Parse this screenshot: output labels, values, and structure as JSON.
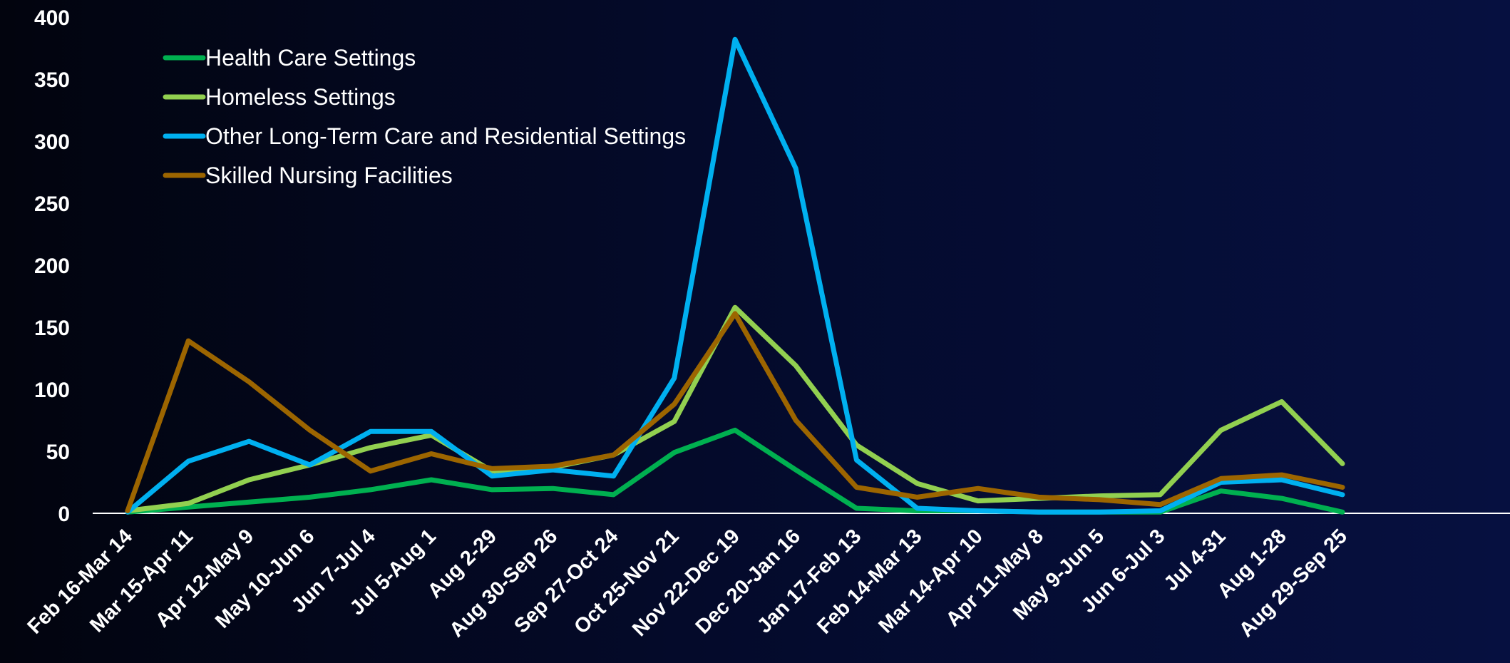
{
  "chart_data": {
    "type": "line",
    "title": "",
    "xlabel": "",
    "ylabel": "",
    "ylim": [
      0,
      400
    ],
    "yticks": [
      "0",
      "50",
      "100",
      "150",
      "200",
      "250",
      "300",
      "350",
      "400"
    ],
    "grid": false,
    "legend_position": "top-left",
    "categories": [
      "Feb 16-Mar 14",
      "Mar 15-Apr 11",
      "Apr 12-May 9",
      "May 10-Jun 6",
      "Jun 7-Jul 4",
      "Jul 5-Aug 1",
      "Aug 2-29",
      "Aug 30-Sep 26",
      "Sep 27-Oct 24",
      "Oct 25-Nov 21",
      "Nov 22-Dec 19",
      "Dec 20-Jan 16",
      "Jan 17-Feb 13",
      "Feb 14-Mar 13",
      "Mar 14-Apr 10",
      "Apr 11-May 8",
      "May 9-Jun 5",
      "Jun 6-Jul 3",
      "Jul 4-31",
      "Aug 1-28",
      "Aug 29-Sep 25"
    ],
    "series": [
      {
        "name": "Health Care Settings",
        "color": "#00b050",
        "values": [
          1,
          5,
          9,
          13,
          19,
          27,
          19,
          20,
          15,
          49,
          67,
          35,
          4,
          2,
          2,
          1,
          1,
          1,
          18,
          12,
          1
        ]
      },
      {
        "name": "Homeless Settings",
        "color": "#92d050",
        "values": [
          2,
          8,
          27,
          39,
          53,
          63,
          34,
          37,
          47,
          74,
          166,
          119,
          55,
          24,
          10,
          12,
          14,
          15,
          67,
          90,
          40
        ]
      },
      {
        "name": "Other Long-Term Care and Residential Settings",
        "color": "#00b0f0",
        "values": [
          1,
          42,
          58,
          39,
          66,
          66,
          30,
          35,
          30,
          109,
          382,
          278,
          43,
          4,
          2,
          1,
          1,
          2,
          25,
          27,
          15
        ]
      },
      {
        "name": "Skilled Nursing Facilities",
        "color": "#9c6500",
        "values": [
          2,
          139,
          106,
          67,
          34,
          48,
          36,
          38,
          47,
          88,
          161,
          75,
          21,
          13,
          20,
          13,
          11,
          7,
          28,
          31,
          21
        ]
      }
    ]
  }
}
